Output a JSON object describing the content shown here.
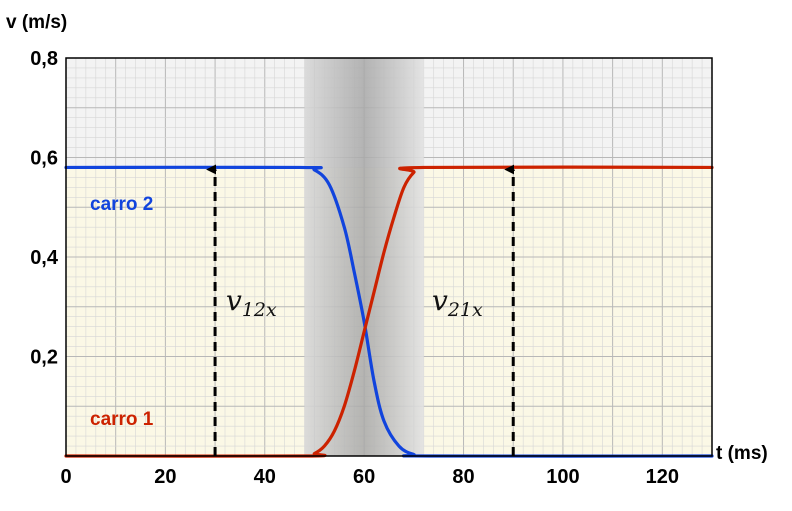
{
  "chart_data": {
    "type": "line",
    "xlabel": "t (ms)",
    "ylabel": "v (m/s)",
    "xlim": [
      0,
      130
    ],
    "ylim": [
      0,
      0.8
    ],
    "x_ticks": [
      "0",
      "20",
      "40",
      "60",
      "80",
      "100",
      "120"
    ],
    "y_ticks": [
      "0,2",
      "0,4",
      "0,6",
      "0,8"
    ],
    "grid": true,
    "shaded_interaction_interval": [
      48,
      72
    ],
    "series": [
      {
        "name": "carro 2",
        "color": "#1144dd",
        "x": [
          0,
          47,
          50,
          53,
          56,
          58,
          60,
          62,
          64,
          67,
          70,
          73,
          130
        ],
        "values": [
          0.58,
          0.58,
          0.575,
          0.545,
          0.46,
          0.37,
          0.27,
          0.15,
          0.07,
          0.02,
          0.003,
          0,
          0
        ]
      },
      {
        "name": "carro 1",
        "color": "#cc2200",
        "x": [
          0,
          48,
          50,
          52,
          54,
          56,
          58,
          60,
          62,
          64,
          66,
          68,
          70,
          72,
          130
        ],
        "values": [
          0,
          0,
          0.005,
          0.02,
          0.05,
          0.1,
          0.17,
          0.25,
          0.33,
          0.41,
          0.48,
          0.54,
          0.57,
          0.58,
          0.58
        ]
      }
    ],
    "annotations": [
      {
        "symbol": "v",
        "subscript": "12x",
        "x": 30,
        "from": 0,
        "to": 0.58
      },
      {
        "symbol": "v",
        "subscript": "21x",
        "x": 90,
        "from": 0,
        "to": 0.58
      }
    ]
  }
}
